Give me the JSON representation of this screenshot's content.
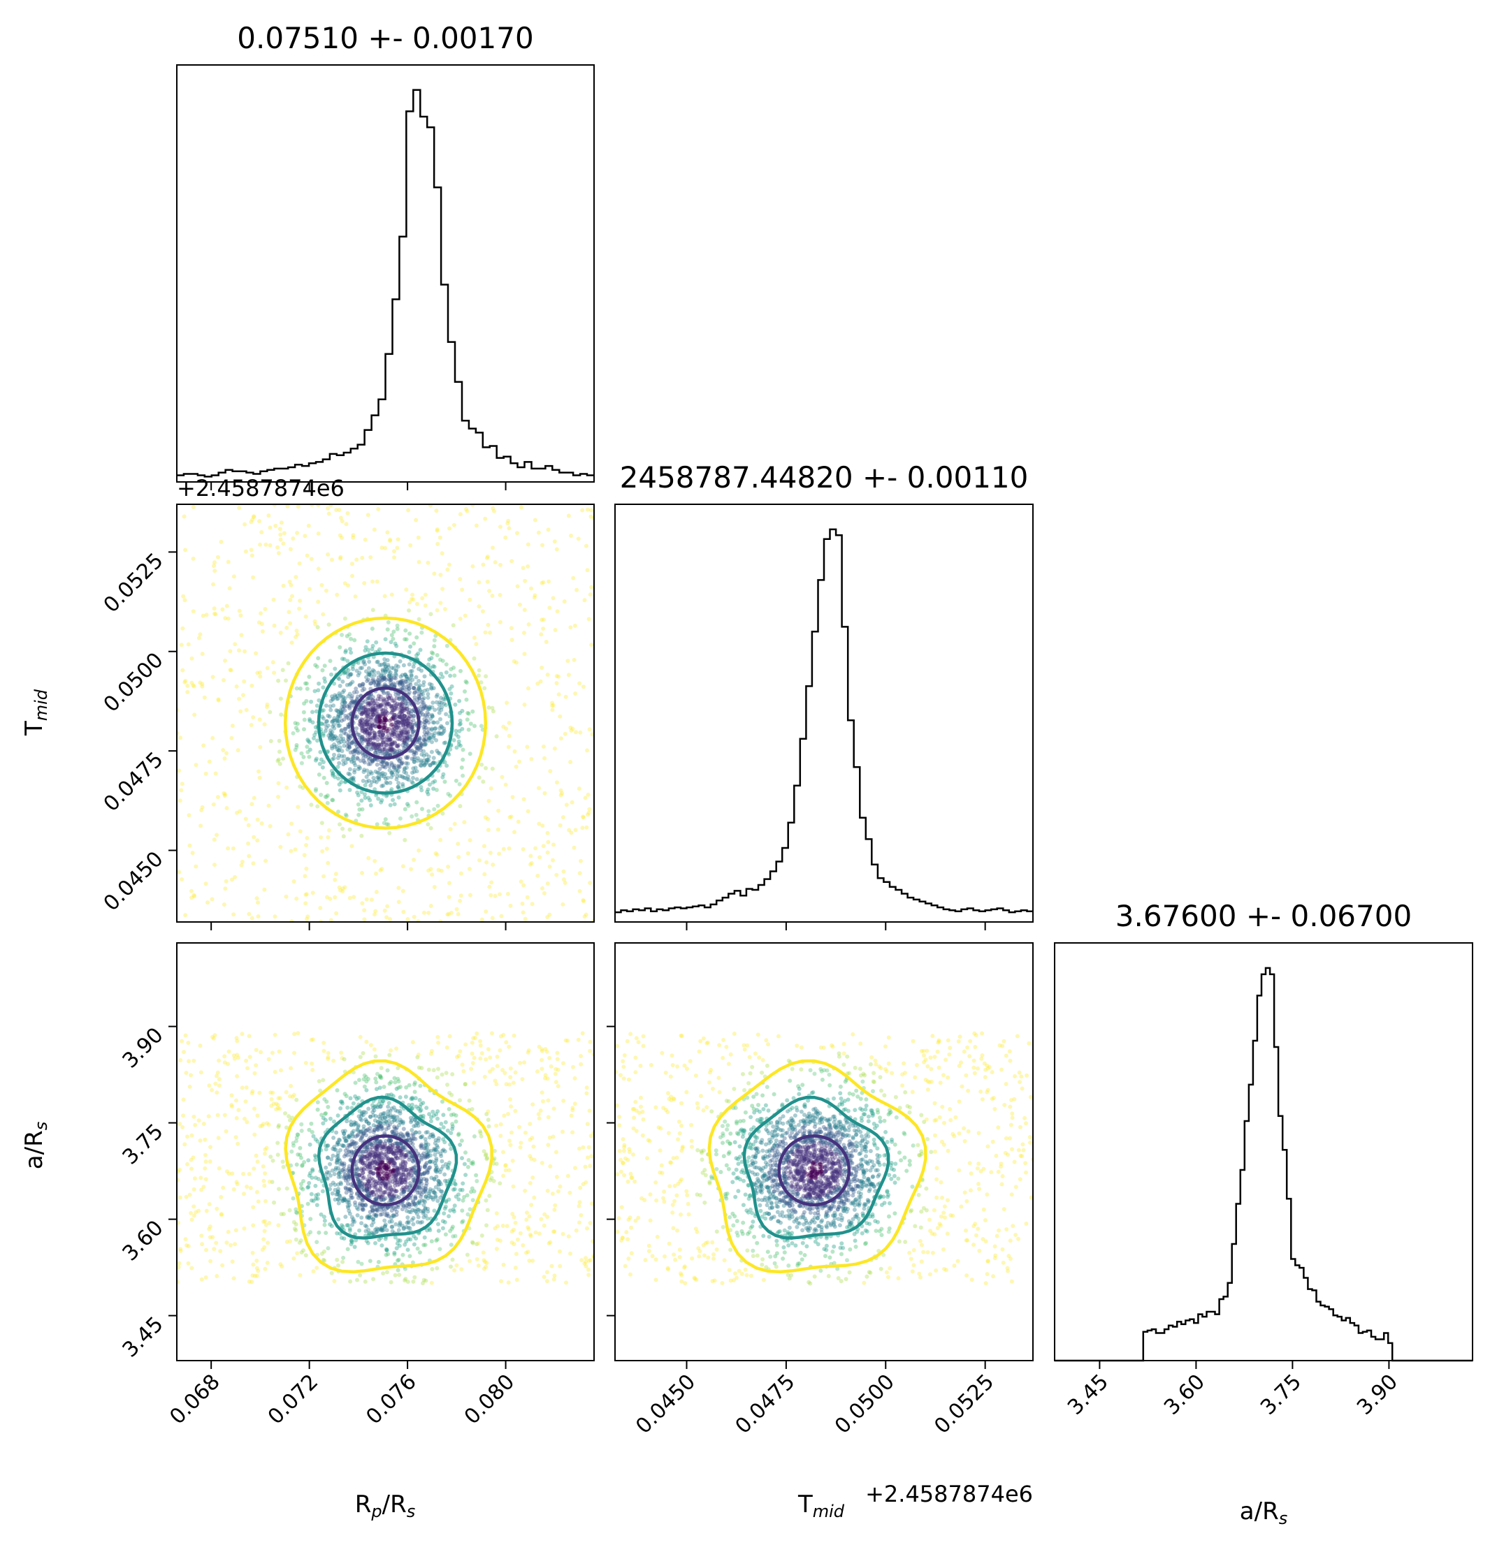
{
  "chart_data": {
    "type": "scatter",
    "layout": "corner",
    "parameters": [
      {
        "name": "Rp/Rs",
        "label_main": "R",
        "label_sub1": "p",
        "label_mid": "/R",
        "label_sub2": "s",
        "title": "0.07510 +- 0.00170",
        "median": 0.0751,
        "sigma": 0.0017,
        "range": [
          0.0666,
          0.0836
        ],
        "ticks": [
          0.068,
          0.072,
          0.076,
          0.08
        ],
        "tick_labels": [
          "0.068",
          "0.072",
          "0.076",
          "0.080"
        ],
        "offset_text": ""
      },
      {
        "name": "Tmid",
        "label_main": "T",
        "label_sub1": "mid",
        "label_mid": "",
        "label_sub2": "",
        "title": "2458787.44820 +- 0.00110",
        "median": 0.0482,
        "sigma": 0.0011,
        "range": [
          0.0432,
          0.0537
        ],
        "ticks": [
          0.045,
          0.0475,
          0.05,
          0.0525
        ],
        "tick_labels": [
          "0.0450",
          "0.0475",
          "0.0500",
          "0.0525"
        ],
        "offset_text": "+2.4587874e6"
      },
      {
        "name": "a/Rs",
        "label_main": "a/R",
        "label_sub1": "",
        "label_mid": "",
        "label_sub2": "s",
        "title": "3.67600 +- 0.06700",
        "median": 3.676,
        "sigma": 0.067,
        "range": [
          3.38,
          4.03
        ],
        "ticks": [
          3.45,
          3.6,
          3.75,
          3.9
        ],
        "tick_labels": [
          "3.45",
          "3.60",
          "3.75",
          "3.90"
        ],
        "offset_text": ""
      }
    ],
    "histograms": [
      {
        "param": "Rp/Rs",
        "bin_edges_range": [
          0.0666,
          0.0836
        ],
        "counts": [
          5,
          6,
          6,
          5,
          4,
          5,
          7,
          9,
          8,
          8,
          7,
          6,
          8,
          9,
          10,
          10,
          11,
          13,
          12,
          14,
          15,
          17,
          21,
          20,
          22,
          25,
          28,
          39,
          50,
          62,
          96,
          137,
          184,
          278,
          294,
          274,
          266,
          221,
          148,
          105,
          75,
          46,
          40,
          37,
          26,
          27,
          18,
          19,
          14,
          11,
          15,
          10,
          10,
          12,
          9,
          7,
          7,
          5,
          6,
          5
        ]
      },
      {
        "param": "Tmid",
        "bin_edges_range": [
          0.0432,
          0.0537
        ],
        "counts": [
          10,
          12,
          11,
          13,
          12,
          14,
          11,
          13,
          12,
          14,
          15,
          14,
          15,
          16,
          17,
          15,
          18,
          22,
          25,
          29,
          32,
          27,
          34,
          33,
          38,
          44,
          52,
          62,
          76,
          102,
          140,
          188,
          242,
          298,
          351,
          393,
          403,
          397,
          303,
          207,
          159,
          107,
          85,
          59,
          45,
          41,
          36,
          33,
          29,
          25,
          23,
          21,
          19,
          17,
          15,
          13,
          12,
          11,
          13,
          14,
          12,
          11,
          12,
          13,
          14,
          12,
          10,
          11,
          12,
          11
        ]
      },
      {
        "param": "a/Rs",
        "bin_edges_range": [
          3.38,
          4.03
        ],
        "counts": [
          0,
          0,
          0,
          0,
          0,
          0,
          0,
          0,
          0,
          0,
          0,
          0,
          0,
          0,
          0,
          0,
          0,
          0,
          0,
          0,
          0,
          23,
          24,
          25,
          22,
          22,
          25,
          28,
          27,
          31,
          29,
          32,
          33,
          30,
          37,
          35,
          39,
          39,
          37,
          49,
          51,
          62,
          93,
          125,
          152,
          191,
          220,
          255,
          291,
          308,
          313,
          308,
          250,
          195,
          168,
          129,
          81,
          76,
          74,
          66,
          57,
          56,
          47,
          44,
          43,
          41,
          36,
          35,
          32,
          34,
          30,
          28,
          22,
          23,
          24,
          19,
          17,
          17,
          22,
          14,
          0,
          0,
          0,
          0,
          0,
          0,
          0,
          0,
          0,
          0,
          0,
          0,
          0,
          0,
          0,
          0,
          0,
          0,
          0
        ]
      }
    ],
    "contours": [
      {
        "level": "inner",
        "color": "#46327e"
      },
      {
        "level": "middle",
        "color": "#21918c"
      },
      {
        "level": "outer",
        "color": "#fde725"
      }
    ],
    "grid": false,
    "legend": "none"
  }
}
